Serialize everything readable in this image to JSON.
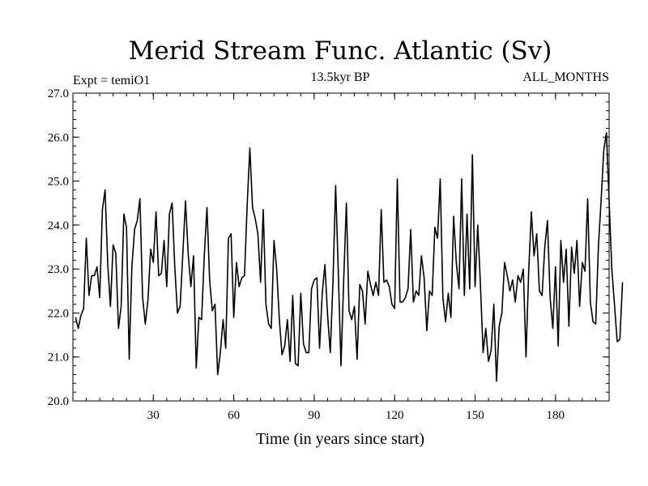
{
  "chart_data": {
    "type": "line",
    "title": "Merid Stream Func. Atlantic (Sv)",
    "subtitle_left": "Expt = temiO1",
    "subtitle_center": "13.5kyr BP",
    "subtitle_right": "ALL_MONTHS",
    "xlabel": "Time (in years since start)",
    "ylabel": "",
    "xlim": [
      0,
      200
    ],
    "ylim": [
      20.0,
      27.0
    ],
    "x_ticks": [
      30,
      60,
      90,
      120,
      150,
      180
    ],
    "x_tick_labels": [
      "30",
      "60",
      "90",
      "120",
      "150",
      "180"
    ],
    "y_ticks": [
      20.0,
      21.0,
      22.0,
      23.0,
      24.0,
      25.0,
      26.0,
      27.0
    ],
    "y_tick_labels": [
      "20.0",
      "21.0",
      "22.0",
      "23.0",
      "24.0",
      "25.0",
      "26.0",
      "27.0"
    ],
    "x_minor_step": 5,
    "y_minor_step": 0.2,
    "series": [
      {
        "name": "Merid Stream Func. Atlantic",
        "x_start": 1,
        "x_step": 1,
        "values": [
          21.9,
          21.65,
          21.95,
          22.1,
          23.7,
          22.4,
          22.85,
          22.85,
          23.05,
          22.35,
          24.35,
          24.8,
          23.1,
          22.15,
          23.55,
          23.35,
          21.65,
          22.15,
          24.25,
          23.95,
          20.95,
          23.05,
          23.9,
          24.1,
          24.6,
          22.35,
          21.75,
          22.3,
          23.45,
          23.15,
          24.3,
          22.85,
          22.9,
          23.65,
          22.6,
          24.25,
          24.5,
          23.05,
          22.0,
          22.15,
          23.35,
          24.55,
          23.35,
          22.6,
          23.3,
          20.75,
          21.9,
          21.85,
          23.3,
          24.4,
          22.75,
          22.05,
          22.2,
          20.6,
          21.1,
          21.85,
          21.2,
          23.7,
          23.8,
          21.9,
          23.15,
          22.6,
          22.8,
          22.85,
          24.45,
          25.75,
          24.4,
          24.15,
          23.8,
          22.7,
          24.35,
          22.2,
          21.75,
          21.65,
          23.65,
          23.0,
          21.85,
          21.05,
          21.25,
          21.85,
          20.9,
          22.4,
          20.85,
          20.8,
          22.45,
          21.3,
          21.1,
          21.1,
          22.55,
          22.75,
          22.8,
          21.2,
          22.45,
          23.1,
          21.95,
          21.1,
          22.7,
          24.9,
          22.9,
          20.8,
          22.75,
          24.5,
          22.05,
          21.85,
          22.15,
          20.95,
          22.65,
          22.5,
          21.75,
          22.95,
          22.65,
          22.4,
          22.7,
          22.4,
          24.35,
          22.7,
          22.75,
          22.6,
          22.2,
          22.1,
          25.05,
          22.25,
          22.25,
          22.35,
          22.55,
          23.9,
          22.25,
          22.5,
          22.4,
          23.3,
          22.8,
          21.6,
          22.5,
          22.4,
          23.95,
          23.7,
          25.05,
          22.35,
          21.8,
          22.45,
          21.9,
          24.2,
          23.15,
          22.55,
          25.05,
          22.4,
          24.25,
          22.55,
          25.6,
          22.6,
          24.0,
          22.65,
          21.1,
          21.65,
          20.9,
          21.15,
          22.2,
          20.45,
          21.7,
          22.0,
          23.15,
          22.85,
          22.5,
          22.75,
          22.25,
          22.85,
          22.7,
          23.0,
          21.0,
          22.95,
          24.3,
          23.3,
          23.8,
          22.5,
          22.4,
          23.5,
          24.1,
          22.35,
          21.65,
          23.05,
          21.25,
          23.65,
          22.7,
          23.45,
          21.7,
          23.5,
          22.9,
          23.65,
          22.15,
          23.15,
          22.95,
          24.6,
          22.25,
          21.8,
          21.75,
          23.5,
          24.55,
          25.7,
          26.1,
          24.55,
          23.0,
          22.2,
          21.35,
          21.4,
          22.7
        ]
      }
    ]
  }
}
